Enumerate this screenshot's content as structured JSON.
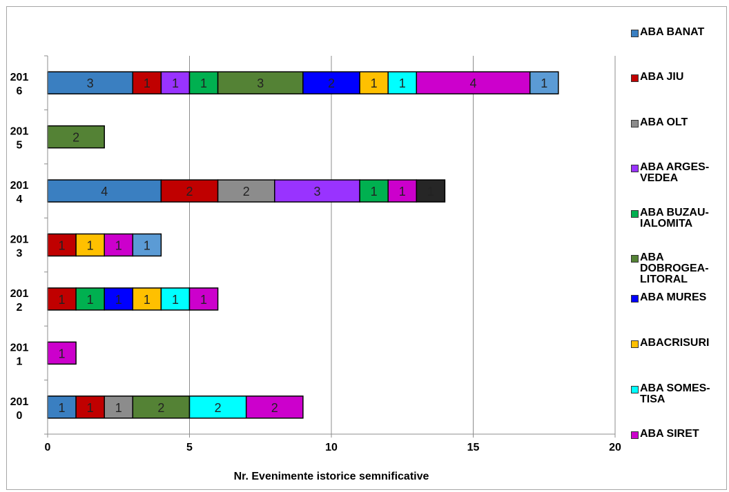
{
  "chart_data": {
    "type": "bar",
    "orientation": "horizontal",
    "stacked": true,
    "xlabel": "Nr. Evenimente istorice semnificative",
    "ylabel": "",
    "xlim": [
      0,
      20
    ],
    "xticks": [
      0,
      5,
      10,
      15,
      20
    ],
    "grid": true,
    "legend_position": "right",
    "categories": [
      [
        "201",
        "0"
      ],
      [
        "201",
        "1"
      ],
      [
        "201",
        "2"
      ],
      [
        "201",
        "3"
      ],
      [
        "201",
        "4"
      ],
      [
        "201",
        "5"
      ],
      [
        "201",
        "6"
      ]
    ],
    "series": [
      {
        "name": [
          "ABA BANAT"
        ],
        "color": "#3a7fc1",
        "values": [
          1,
          0,
          0,
          0,
          4,
          0,
          3
        ]
      },
      {
        "name": [
          "ABA JIU"
        ],
        "color": "#c00000",
        "values": [
          1,
          0,
          1,
          1,
          2,
          0,
          1
        ]
      },
      {
        "name": [
          "ABA OLT"
        ],
        "color": "#8c8c8c",
        "values": [
          1,
          0,
          0,
          0,
          2,
          0,
          0
        ]
      },
      {
        "name": [
          "ABA ARGES-",
          "VEDEA"
        ],
        "color": "#9933ff",
        "values": [
          0,
          0,
          0,
          0,
          3,
          0,
          1
        ]
      },
      {
        "name": [
          "ABA BUZAU-",
          "IALOMITA"
        ],
        "color": "#00b050",
        "values": [
          0,
          0,
          1,
          0,
          1,
          0,
          1
        ]
      },
      {
        "name": [
          "ABA",
          "DOBROGEA-",
          "LITORAL"
        ],
        "color": "#548235",
        "values": [
          2,
          0,
          0,
          0,
          0,
          2,
          3
        ]
      },
      {
        "name": [
          "ABA MURES"
        ],
        "color": "#0000ff",
        "values": [
          0,
          0,
          1,
          0,
          0,
          0,
          2
        ]
      },
      {
        "name": [
          "ABACRISURI"
        ],
        "color": "#ffc000",
        "values": [
          0,
          0,
          1,
          1,
          0,
          0,
          1
        ]
      },
      {
        "name": [
          "ABA SOMES-",
          "TISA"
        ],
        "color": "#00ffff",
        "values": [
          2,
          0,
          1,
          0,
          0,
          0,
          1
        ]
      },
      {
        "name": [
          "ABA SIRET"
        ],
        "color": "#cc00cc",
        "values": [
          2,
          1,
          1,
          1,
          1,
          0,
          4
        ]
      },
      {
        "name": [],
        "color": "#5b9bd5",
        "values": [
          0,
          0,
          0,
          1,
          0,
          0,
          1
        ]
      },
      {
        "name": [],
        "color": "#262626",
        "values": [
          0,
          0,
          0,
          0,
          1,
          0,
          0
        ]
      }
    ]
  }
}
